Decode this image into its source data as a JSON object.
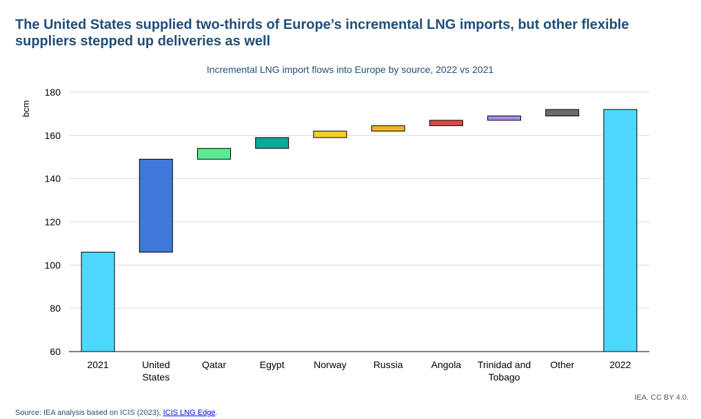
{
  "headline": "The United States supplied two-thirds of Europe’s incremental LNG imports, but other flexible suppliers stepped up deliveries as well",
  "footer": {
    "source_prefix": "Source: IEA analysis based on ICIS (2023), ",
    "source_link": "ICIS LNG Edge",
    "source_suffix": ".",
    "credit": "IEA. CC BY 4.0."
  },
  "chart_data": {
    "type": "bar",
    "subtype": "waterfall",
    "title": "Incremental LNG import flows into Europe by source, 2022 vs 2021",
    "ylabel": "bcm",
    "xlabel": "",
    "ylim": [
      60,
      180
    ],
    "yticks": [
      60,
      80,
      100,
      120,
      140,
      160,
      180
    ],
    "grid": true,
    "legend": "none",
    "categories": [
      "2021",
      "United States",
      "Qatar",
      "Egypt",
      "Norway",
      "Russia",
      "Angola",
      "Trinidad and Tobago",
      "Other",
      "2022"
    ],
    "category_lines": [
      [
        "2021"
      ],
      [
        "United",
        "States"
      ],
      [
        "Qatar"
      ],
      [
        "Egypt"
      ],
      [
        "Norway"
      ],
      [
        "Russia"
      ],
      [
        "Angola"
      ],
      [
        "Trinidad and",
        "Tobago"
      ],
      [
        "Other"
      ],
      [
        "2022"
      ]
    ],
    "bars": [
      {
        "label": "2021",
        "kind": "total",
        "start": 60,
        "end": 106,
        "color": "#4dd9ff"
      },
      {
        "label": "United States",
        "kind": "delta",
        "start": 106,
        "end": 149,
        "color": "#3f78d6"
      },
      {
        "label": "Qatar",
        "kind": "delta",
        "start": 149,
        "end": 154,
        "color": "#5ce88f"
      },
      {
        "label": "Egypt",
        "kind": "delta",
        "start": 154,
        "end": 159,
        "color": "#0aa89b"
      },
      {
        "label": "Norway",
        "kind": "delta",
        "start": 159,
        "end": 162,
        "color": "#f7cd2b"
      },
      {
        "label": "Russia",
        "kind": "delta",
        "start": 162,
        "end": 164.5,
        "color": "#f0b323"
      },
      {
        "label": "Angola",
        "kind": "delta",
        "start": 164.5,
        "end": 167,
        "color": "#e04646"
      },
      {
        "label": "Trinidad and Tobago",
        "kind": "delta",
        "start": 167,
        "end": 169,
        "color": "#a98ae8"
      },
      {
        "label": "Other",
        "kind": "delta",
        "start": 169,
        "end": 172,
        "color": "#6b6b6b"
      },
      {
        "label": "2022",
        "kind": "total",
        "start": 60,
        "end": 172,
        "color": "#4dd9ff"
      }
    ],
    "colors": {
      "title": "#1f4e79",
      "grid": "#d9d9d9",
      "axis": "#000000",
      "bar_outline": "#000000",
      "tick_text": "#000000"
    }
  }
}
